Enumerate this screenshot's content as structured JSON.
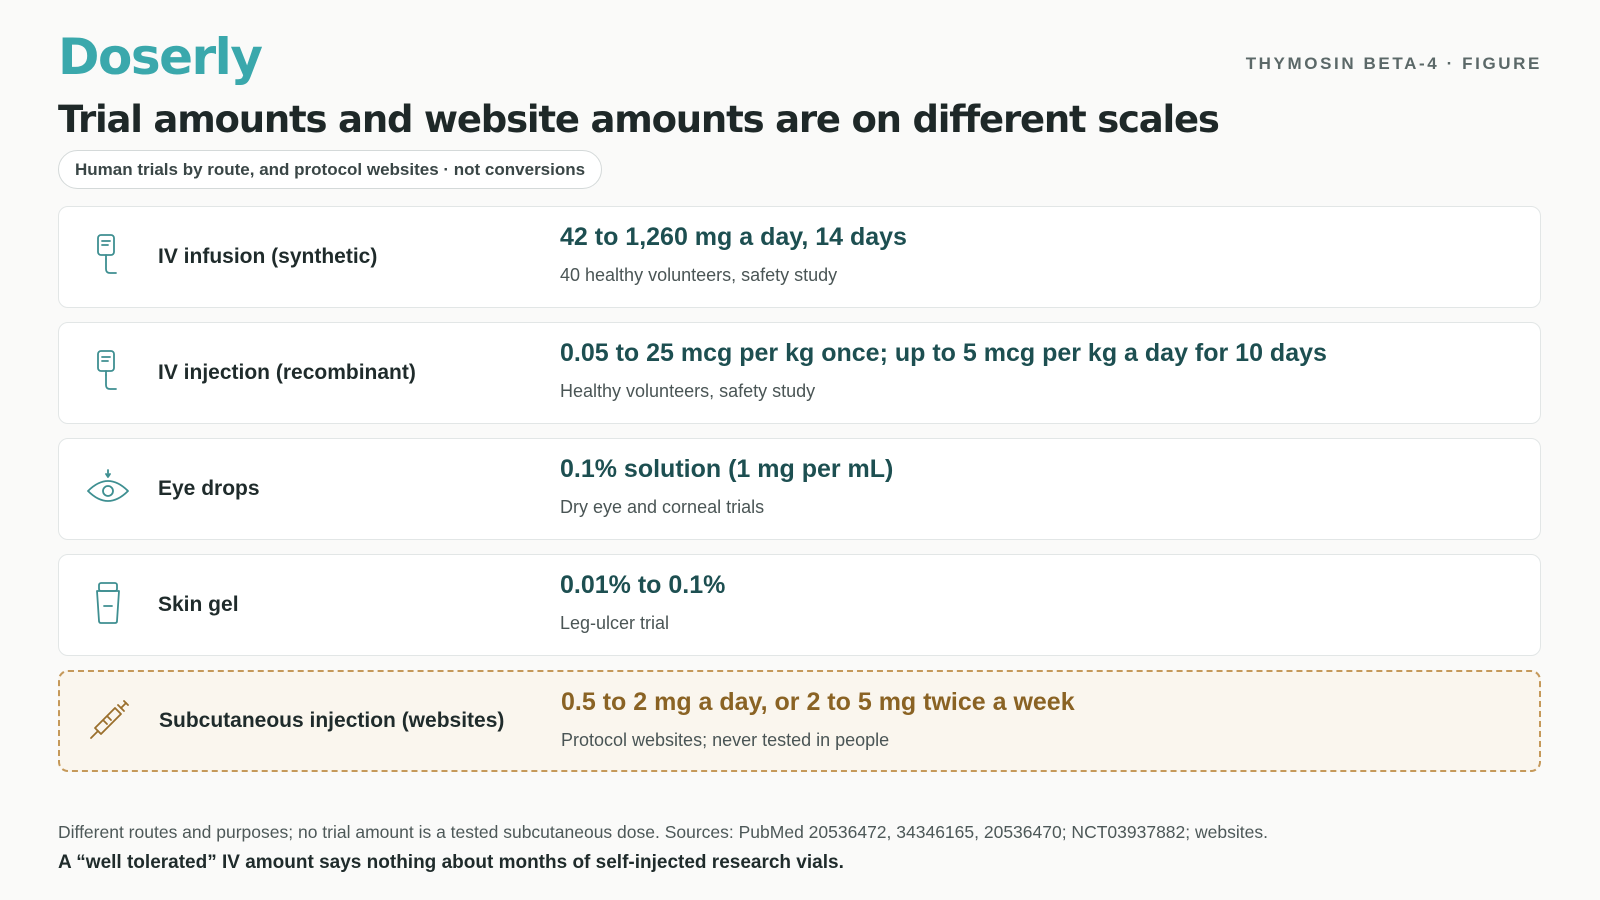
{
  "header": {
    "brand": "Doserly",
    "kicker": "THYMOSIN BETA-4 · FIGURE",
    "title": "Trial amounts and website amounts are on different scales",
    "subtitle": "Human trials by route, and protocol websites · not conversions"
  },
  "rows": [
    {
      "icon": "iv-bag-icon",
      "route": "IV infusion (synthetic)",
      "amount": "42 to 1,260 mg a day, 14 days",
      "note": "40 healthy volunteers, safety study"
    },
    {
      "icon": "iv-bag-icon",
      "route": "IV injection (recombinant)",
      "amount": "0.05 to 25 mcg per kg once; up to 5 mcg per kg a day for 10 days",
      "note": "Healthy volunteers, safety study"
    },
    {
      "icon": "eye-drop-icon",
      "route": "Eye drops",
      "amount": "0.1% solution (1 mg per mL)",
      "note": "Dry eye and corneal trials"
    },
    {
      "icon": "gel-tube-icon",
      "route": "Skin gel",
      "amount": "0.01% to 0.1%",
      "note": "Leg-ulcer trial"
    },
    {
      "icon": "syringe-icon",
      "route": "Subcutaneous injection (websites)",
      "amount": "0.5 to 2 mg a day, or 2 to 5 mg twice a week",
      "note": "Protocol websites; never tested in people"
    }
  ],
  "footer": {
    "footnote": "Different routes and purposes; no trial amount is a tested subcutaneous dose. Sources: PubMed 20536472, 34346165, 20536470; NCT03937882; websites.",
    "takeaway": "A “well tolerated” IV amount says nothing about months of self-injected research vials."
  },
  "colors": {
    "brand": "#3aa8ac",
    "trial_amount": "#1d4f51",
    "website_amount": "#8a6324",
    "website_border": "#c5995a",
    "website_background": "#faf6ee"
  }
}
